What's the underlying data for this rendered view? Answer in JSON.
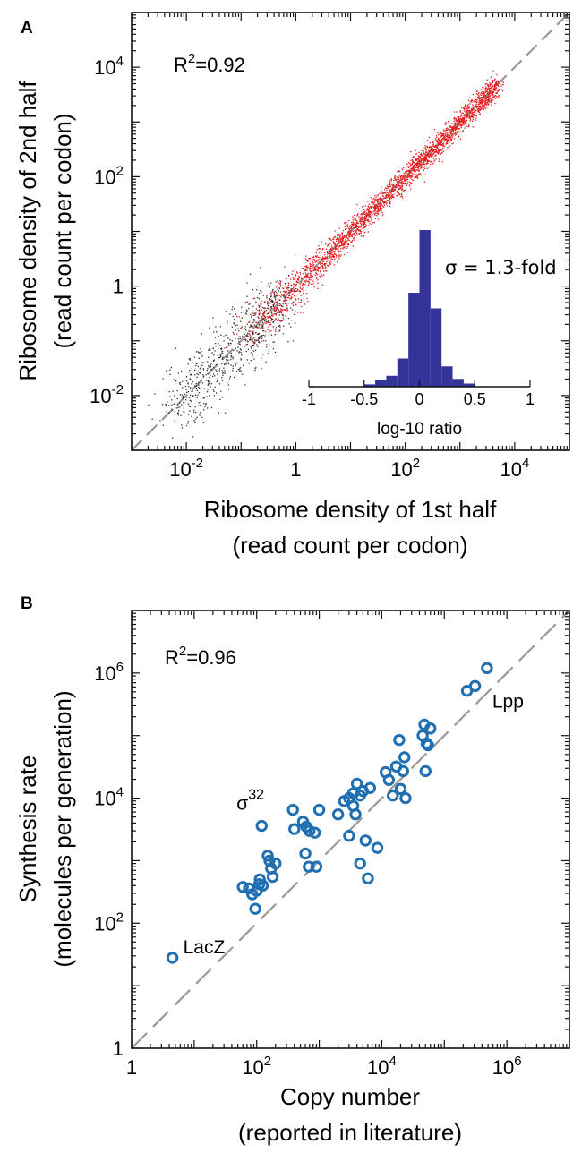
{
  "chart_data": [
    {
      "panel": "A",
      "type": "scatter",
      "xlabel": [
        "Ribosome density of 1st half",
        "(read count per codon)"
      ],
      "ylabel": [
        "Ribosome density of 2nd half",
        "(read count per codon)"
      ],
      "x_scale": "log",
      "y_scale": "log",
      "xlim": [
        0.001,
        100000
      ],
      "ylim": [
        0.001,
        100000
      ],
      "x_ticks": [
        {
          "base": "10",
          "exp": "-2"
        },
        {
          "base": "1",
          "exp": ""
        },
        {
          "base": "10",
          "exp": "2"
        },
        {
          "base": "10",
          "exp": "4"
        }
      ],
      "y_ticks": [
        {
          "base": "10",
          "exp": "4"
        },
        {
          "base": "10",
          "exp": "2"
        },
        {
          "base": "1",
          "exp": ""
        },
        {
          "base": "10",
          "exp": "-2"
        }
      ],
      "annotation": {
        "base": "R",
        "exp": "2",
        "rest": "=0.92"
      },
      "reference_line": "y = x (dashed)",
      "series": [
        {
          "color": "#e41a1c",
          "range_x": [
            0.1,
            5000
          ],
          "spread_log10_sigma": 0.1,
          "approx_points": 2600
        },
        {
          "color": "#333333",
          "range_x": [
            0.006,
            0.6
          ],
          "spread_log10_sigma": 0.3,
          "approx_points": 700
        }
      ],
      "inset": {
        "type": "histogram",
        "xlabel": "log-10 ratio",
        "xlim": [
          -1,
          1
        ],
        "x_ticks": [
          "-1",
          "-0.5",
          "0",
          "0.5",
          "1"
        ],
        "bar_color": "#333399",
        "bin_width": 0.1,
        "bins": [
          {
            "x0": -0.5,
            "height": 0.015
          },
          {
            "x0": -0.4,
            "height": 0.04
          },
          {
            "x0": -0.3,
            "height": 0.07
          },
          {
            "x0": -0.2,
            "height": 0.18
          },
          {
            "x0": -0.1,
            "height": 0.6
          },
          {
            "x0": 0.0,
            "height": 1.0
          },
          {
            "x0": 0.1,
            "height": 0.5
          },
          {
            "x0": 0.2,
            "height": 0.13
          },
          {
            "x0": 0.3,
            "height": 0.05
          },
          {
            "x0": 0.4,
            "height": 0.02
          }
        ],
        "annotation": "σ = 1.3-fold"
      }
    },
    {
      "panel": "B",
      "type": "scatter",
      "xlabel": [
        "Copy number",
        "(reported in literature)"
      ],
      "ylabel": [
        "Synthesis rate",
        "(molecules per generation)"
      ],
      "x_scale": "log",
      "y_scale": "log",
      "xlim": [
        1,
        10000000
      ],
      "ylim": [
        1,
        10000000
      ],
      "x_ticks": [
        {
          "base": "1",
          "exp": ""
        },
        {
          "base": "10",
          "exp": "2"
        },
        {
          "base": "10",
          "exp": "4"
        },
        {
          "base": "10",
          "exp": "6"
        }
      ],
      "y_ticks": [
        {
          "base": "10",
          "exp": "6"
        },
        {
          "base": "10",
          "exp": "4"
        },
        {
          "base": "10",
          "exp": "2"
        },
        {
          "base": "1",
          "exp": ""
        }
      ],
      "annotation": {
        "base": "R",
        "exp": "2",
        "rest": "=0.96"
      },
      "reference_line": "y = x (dashed)",
      "marker": "open-circle",
      "marker_color": "#1f6fb2",
      "points": [
        [
          4.5,
          28
        ],
        [
          60,
          380
        ],
        [
          75,
          360
        ],
        [
          85,
          290
        ],
        [
          95,
          170
        ],
        [
          100,
          330
        ],
        [
          110,
          420
        ],
        [
          112,
          500
        ],
        [
          125,
          400
        ],
        [
          120,
          3600
        ],
        [
          150,
          1200
        ],
        [
          160,
          1000
        ],
        [
          170,
          750
        ],
        [
          180,
          550
        ],
        [
          200,
          900
        ],
        [
          380,
          6500
        ],
        [
          400,
          3200
        ],
        [
          550,
          4200
        ],
        [
          600,
          1300
        ],
        [
          620,
          3500
        ],
        [
          700,
          3000
        ],
        [
          680,
          800
        ],
        [
          850,
          2800
        ],
        [
          900,
          800
        ],
        [
          1000,
          6500
        ],
        [
          2000,
          5500
        ],
        [
          2500,
          9000
        ],
        [
          3000,
          2500
        ],
        [
          3000,
          10000
        ],
        [
          3500,
          12000
        ],
        [
          3500,
          7500
        ],
        [
          3800,
          5500
        ],
        [
          4000,
          17000
        ],
        [
          4500,
          11000
        ],
        [
          4500,
          900
        ],
        [
          5000,
          13000
        ],
        [
          5500,
          2100
        ],
        [
          6000,
          520
        ],
        [
          6500,
          14500
        ],
        [
          8500,
          1600
        ],
        [
          11500,
          26000
        ],
        [
          13000,
          19500
        ],
        [
          15000,
          11000
        ],
        [
          17000,
          32000
        ],
        [
          19000,
          85000
        ],
        [
          20000,
          14000
        ],
        [
          22000,
          27000
        ],
        [
          23000,
          45000
        ],
        [
          24000,
          10000
        ],
        [
          45000,
          100000
        ],
        [
          48000,
          150000
        ],
        [
          52000,
          75000
        ],
        [
          55000,
          70000
        ],
        [
          50000,
          27000
        ],
        [
          60000,
          130000
        ],
        [
          230000,
          520000
        ],
        [
          310000,
          620000
        ],
        [
          480000,
          1200000
        ]
      ],
      "labels": [
        {
          "text": "LacZ",
          "x": 4.5,
          "y": 28
        },
        {
          "text": "Lpp",
          "x": 480000,
          "y": 1200000
        },
        {
          "text": "σ",
          "sup": "32",
          "x": 120,
          "y": 3600
        }
      ]
    }
  ]
}
